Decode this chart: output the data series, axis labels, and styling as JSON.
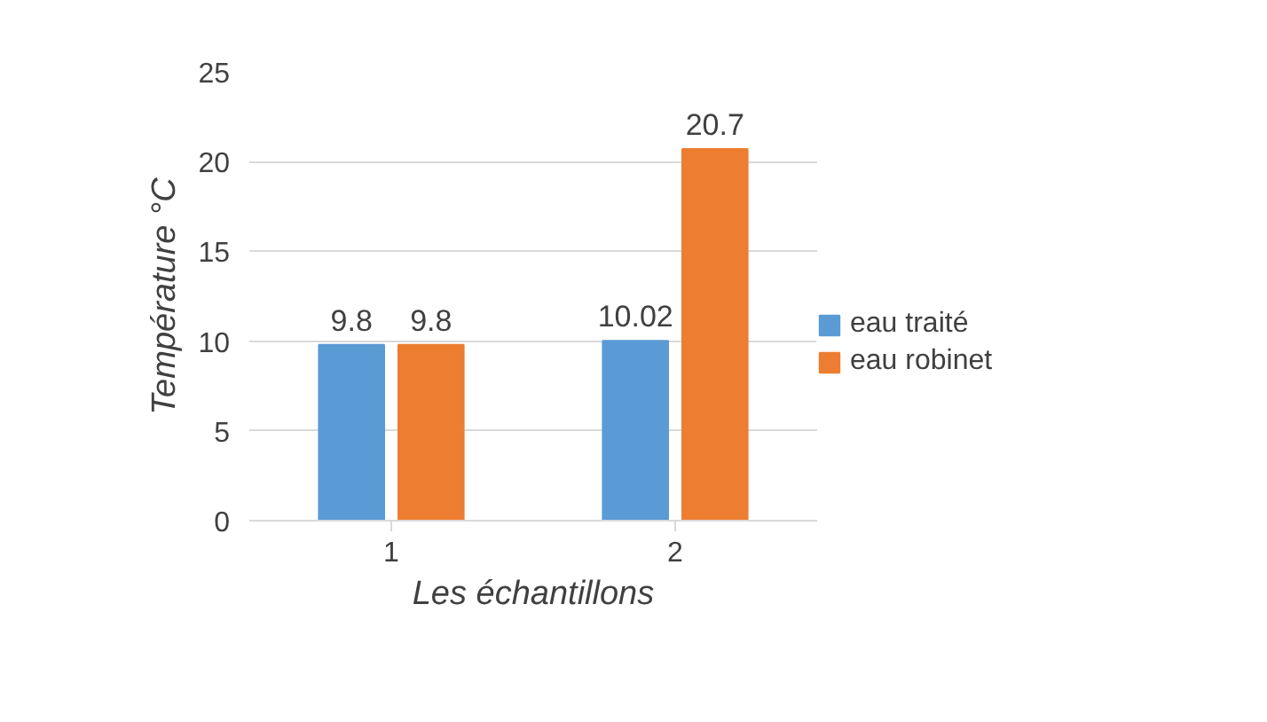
{
  "chart_data": {
    "type": "bar",
    "xlabel": "Les échantillons",
    "ylabel": "Température °C",
    "categories": [
      "1",
      "2"
    ],
    "series": [
      {
        "name": "eau traité",
        "color": "#5b9bd5",
        "values": [
          9.8,
          10.02
        ]
      },
      {
        "name": "eau robinet",
        "color": "#ed7d31",
        "values": [
          9.8,
          20.7
        ]
      }
    ],
    "ylim": [
      0,
      25
    ],
    "yticks": [
      0,
      5,
      10,
      15,
      20,
      25
    ],
    "grid": "y",
    "legend": "right",
    "data_labels": true
  }
}
